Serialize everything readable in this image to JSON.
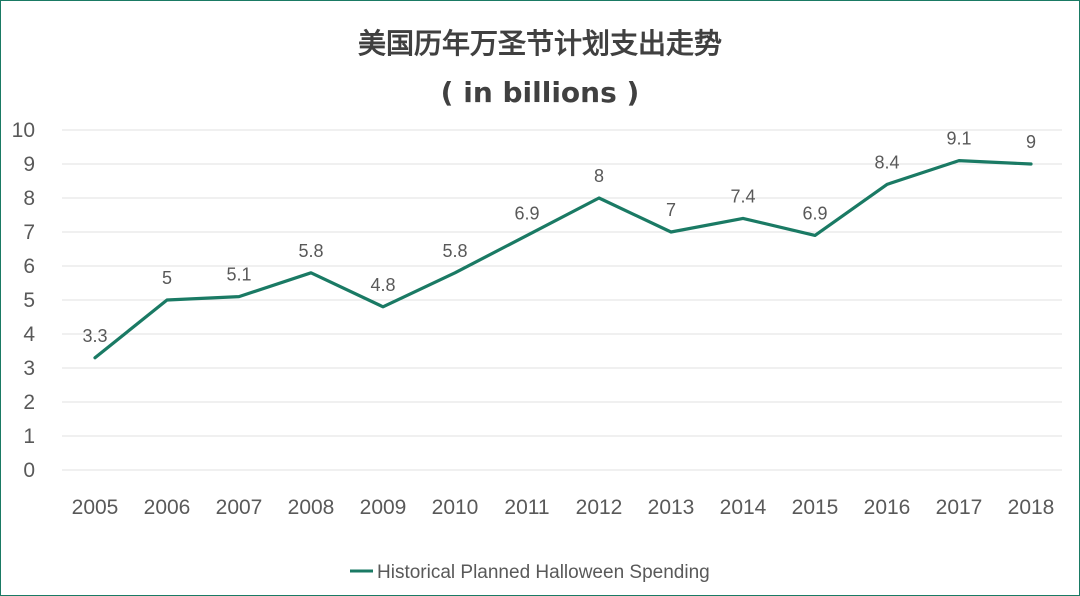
{
  "chart_data": {
    "type": "line",
    "title": "美国历年万圣节计划支出走势",
    "subtitle": "( in billions )",
    "categories": [
      "2005",
      "2006",
      "2007",
      "2008",
      "2009",
      "2010",
      "2011",
      "2012",
      "2013",
      "2014",
      "2015",
      "2016",
      "2017",
      "2018"
    ],
    "series": [
      {
        "name": "Historical Planned Halloween Spending",
        "values": [
          3.3,
          5,
          5.1,
          5.8,
          4.8,
          5.8,
          6.9,
          8,
          7,
          7.4,
          6.9,
          8.4,
          9.1,
          9
        ],
        "labels": [
          "3.3",
          "5",
          "5.1",
          "5.8",
          "4.8",
          "5.8",
          "6.9",
          "8",
          "7",
          "7.4",
          "6.9",
          "8.4",
          "9.1",
          "9"
        ]
      }
    ],
    "y_ticks": [
      "0",
      "1",
      "2",
      "3",
      "4",
      "5",
      "6",
      "7",
      "8",
      "9",
      "10"
    ],
    "ylim": [
      0,
      10
    ],
    "grid": true,
    "legend": "bottom",
    "colors": {
      "line": "#1a7a64",
      "grid": "#e0e0e0",
      "text": "#595959",
      "title": "#404040",
      "border": "#1a7a64"
    }
  }
}
